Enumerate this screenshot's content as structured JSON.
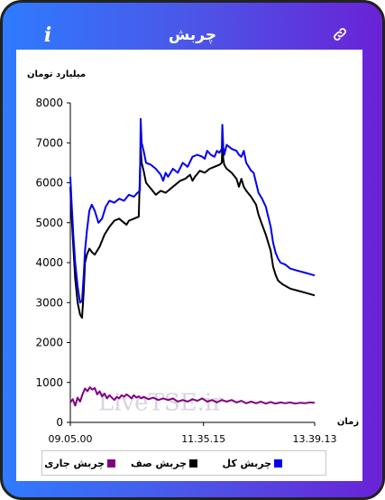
{
  "app": {
    "title": "چربش",
    "info_icon": "info-icon",
    "info_glyph": "i",
    "link_icon": "link-icon"
  },
  "chart_data": {
    "type": "line",
    "title": "",
    "ylabel": "میلیارد تومان",
    "xlabel": "زمان",
    "ylim": [
      0,
      8000
    ],
    "yticks": [
      0,
      1000,
      2000,
      3000,
      4000,
      5000,
      6000,
      7000,
      8000
    ],
    "x_start": "09.05.00",
    "x_end": "13.39.13",
    "x_tick_labels": [
      {
        "label": "09.05.00",
        "pos": 0
      },
      {
        "label": "11.35.15",
        "pos": 0.545
      },
      {
        "label": "13.39.13",
        "pos": 1
      }
    ],
    "grid": false,
    "legend_position": "bottom",
    "watermark": "LiveTSE.ir",
    "series": [
      {
        "name": "چربش کل",
        "color": "#0000ee",
        "points": [
          [
            0,
            6150
          ],
          [
            0.005,
            5500
          ],
          [
            0.012,
            4700
          ],
          [
            0.02,
            4000
          ],
          [
            0.03,
            3400
          ],
          [
            0.04,
            3000
          ],
          [
            0.048,
            3050
          ],
          [
            0.055,
            3700
          ],
          [
            0.06,
            4300
          ],
          [
            0.068,
            4800
          ],
          [
            0.078,
            5300
          ],
          [
            0.088,
            5450
          ],
          [
            0.1,
            5300
          ],
          [
            0.115,
            5000
          ],
          [
            0.13,
            5100
          ],
          [
            0.145,
            5400
          ],
          [
            0.16,
            5550
          ],
          [
            0.18,
            5500
          ],
          [
            0.2,
            5600
          ],
          [
            0.22,
            5550
          ],
          [
            0.24,
            5700
          ],
          [
            0.26,
            5650
          ],
          [
            0.275,
            5750
          ],
          [
            0.285,
            5800
          ],
          [
            0.288,
            7600
          ],
          [
            0.292,
            7000
          ],
          [
            0.3,
            6800
          ],
          [
            0.31,
            6500
          ],
          [
            0.33,
            6450
          ],
          [
            0.35,
            6350
          ],
          [
            0.37,
            6200
          ],
          [
            0.38,
            6050
          ],
          [
            0.39,
            6250
          ],
          [
            0.4,
            6150
          ],
          [
            0.42,
            6350
          ],
          [
            0.44,
            6250
          ],
          [
            0.46,
            6500
          ],
          [
            0.48,
            6400
          ],
          [
            0.5,
            6650
          ],
          [
            0.52,
            6700
          ],
          [
            0.54,
            6650
          ],
          [
            0.55,
            6600
          ],
          [
            0.56,
            6800
          ],
          [
            0.575,
            6700
          ],
          [
            0.59,
            6650
          ],
          [
            0.6,
            6800
          ],
          [
            0.61,
            6750
          ],
          [
            0.62,
            6850
          ],
          [
            0.622,
            7450
          ],
          [
            0.626,
            6900
          ],
          [
            0.63,
            6700
          ],
          [
            0.64,
            6950
          ],
          [
            0.66,
            6850
          ],
          [
            0.68,
            6800
          ],
          [
            0.69,
            6700
          ],
          [
            0.7,
            6650
          ],
          [
            0.71,
            6800
          ],
          [
            0.72,
            6500
          ],
          [
            0.74,
            6300
          ],
          [
            0.75,
            6250
          ],
          [
            0.76,
            6000
          ],
          [
            0.77,
            5750
          ],
          [
            0.785,
            5600
          ],
          [
            0.8,
            5400
          ],
          [
            0.81,
            5150
          ],
          [
            0.82,
            4900
          ],
          [
            0.83,
            4500
          ],
          [
            0.84,
            4250
          ],
          [
            0.85,
            4100
          ],
          [
            0.86,
            4000
          ],
          [
            0.88,
            3950
          ],
          [
            0.9,
            3850
          ],
          [
            0.93,
            3800
          ],
          [
            0.96,
            3750
          ],
          [
            1,
            3680
          ]
        ]
      },
      {
        "name": "چربش صف",
        "color": "#000000",
        "points": [
          [
            0,
            5900
          ],
          [
            0.005,
            5200
          ],
          [
            0.012,
            4400
          ],
          [
            0.02,
            3600
          ],
          [
            0.03,
            3000
          ],
          [
            0.04,
            2700
          ],
          [
            0.048,
            2620
          ],
          [
            0.055,
            3300
          ],
          [
            0.06,
            4000
          ],
          [
            0.068,
            4200
          ],
          [
            0.078,
            4350
          ],
          [
            0.09,
            4250
          ],
          [
            0.1,
            4200
          ],
          [
            0.12,
            4400
          ],
          [
            0.14,
            4700
          ],
          [
            0.16,
            4900
          ],
          [
            0.18,
            5050
          ],
          [
            0.2,
            5100
          ],
          [
            0.22,
            5000
          ],
          [
            0.23,
            4950
          ],
          [
            0.24,
            5050
          ],
          [
            0.26,
            5100
          ],
          [
            0.28,
            5150
          ],
          [
            0.288,
            6900
          ],
          [
            0.292,
            6500
          ],
          [
            0.3,
            6300
          ],
          [
            0.31,
            6000
          ],
          [
            0.33,
            5850
          ],
          [
            0.35,
            5700
          ],
          [
            0.37,
            5800
          ],
          [
            0.39,
            5750
          ],
          [
            0.41,
            5850
          ],
          [
            0.43,
            5950
          ],
          [
            0.45,
            6050
          ],
          [
            0.47,
            6100
          ],
          [
            0.49,
            6200
          ],
          [
            0.5,
            6050
          ],
          [
            0.51,
            6150
          ],
          [
            0.53,
            6300
          ],
          [
            0.55,
            6250
          ],
          [
            0.57,
            6350
          ],
          [
            0.59,
            6400
          ],
          [
            0.61,
            6450
          ],
          [
            0.62,
            6500
          ],
          [
            0.622,
            6950
          ],
          [
            0.626,
            6600
          ],
          [
            0.63,
            6450
          ],
          [
            0.64,
            6350
          ],
          [
            0.66,
            6250
          ],
          [
            0.68,
            6100
          ],
          [
            0.69,
            5900
          ],
          [
            0.7,
            6100
          ],
          [
            0.71,
            5900
          ],
          [
            0.72,
            5800
          ],
          [
            0.74,
            5650
          ],
          [
            0.76,
            5450
          ],
          [
            0.77,
            5200
          ],
          [
            0.785,
            4950
          ],
          [
            0.8,
            4700
          ],
          [
            0.81,
            4500
          ],
          [
            0.82,
            4300
          ],
          [
            0.83,
            3900
          ],
          [
            0.84,
            3700
          ],
          [
            0.85,
            3550
          ],
          [
            0.87,
            3450
          ],
          [
            0.9,
            3350
          ],
          [
            0.93,
            3300
          ],
          [
            0.96,
            3250
          ],
          [
            1,
            3180
          ]
        ]
      },
      {
        "name": "چربش جاری",
        "color": "#800080",
        "points": [
          [
            0,
            500
          ],
          [
            0.01,
            580
          ],
          [
            0.02,
            420
          ],
          [
            0.03,
            620
          ],
          [
            0.04,
            520
          ],
          [
            0.05,
            700
          ],
          [
            0.06,
            850
          ],
          [
            0.07,
            780
          ],
          [
            0.08,
            880
          ],
          [
            0.09,
            820
          ],
          [
            0.1,
            860
          ],
          [
            0.11,
            700
          ],
          [
            0.12,
            780
          ],
          [
            0.13,
            650
          ],
          [
            0.14,
            720
          ],
          [
            0.15,
            600
          ],
          [
            0.16,
            680
          ],
          [
            0.17,
            620
          ],
          [
            0.18,
            560
          ],
          [
            0.19,
            640
          ],
          [
            0.2,
            600
          ],
          [
            0.21,
            680
          ],
          [
            0.22,
            640
          ],
          [
            0.23,
            700
          ],
          [
            0.24,
            660
          ],
          [
            0.25,
            600
          ],
          [
            0.26,
            680
          ],
          [
            0.27,
            620
          ],
          [
            0.28,
            650
          ],
          [
            0.29,
            600
          ],
          [
            0.3,
            640
          ],
          [
            0.32,
            580
          ],
          [
            0.34,
            620
          ],
          [
            0.36,
            560
          ],
          [
            0.38,
            600
          ],
          [
            0.4,
            560
          ],
          [
            0.42,
            600
          ],
          [
            0.44,
            520
          ],
          [
            0.46,
            560
          ],
          [
            0.48,
            520
          ],
          [
            0.5,
            580
          ],
          [
            0.52,
            540
          ],
          [
            0.54,
            600
          ],
          [
            0.56,
            520
          ],
          [
            0.58,
            560
          ],
          [
            0.6,
            500
          ],
          [
            0.62,
            560
          ],
          [
            0.64,
            520
          ],
          [
            0.66,
            560
          ],
          [
            0.68,
            500
          ],
          [
            0.7,
            540
          ],
          [
            0.72,
            480
          ],
          [
            0.74,
            520
          ],
          [
            0.76,
            480
          ],
          [
            0.78,
            520
          ],
          [
            0.8,
            470
          ],
          [
            0.82,
            510
          ],
          [
            0.84,
            470
          ],
          [
            0.86,
            500
          ],
          [
            0.88,
            480
          ],
          [
            0.9,
            500
          ],
          [
            0.92,
            470
          ],
          [
            0.94,
            490
          ],
          [
            0.96,
            480
          ],
          [
            0.98,
            500
          ],
          [
            1,
            490
          ]
        ]
      }
    ]
  }
}
